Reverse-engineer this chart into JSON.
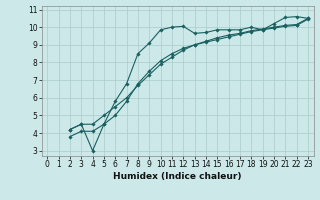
{
  "title": "",
  "xlabel": "Humidex (Indice chaleur)",
  "ylabel": "",
  "bg_color": "#cce8e8",
  "grid_color": "#aacccc",
  "line_color": "#1a6060",
  "xlim": [
    -0.5,
    23.5
  ],
  "ylim": [
    2.7,
    11.2
  ],
  "xticks": [
    0,
    1,
    2,
    3,
    4,
    5,
    6,
    7,
    8,
    9,
    10,
    11,
    12,
    13,
    14,
    15,
    16,
    17,
    18,
    19,
    20,
    21,
    22,
    23
  ],
  "yticks": [
    3,
    4,
    5,
    6,
    7,
    8,
    9,
    10,
    11
  ],
  "line1_x": [
    2,
    3,
    4,
    5,
    6,
    7,
    8,
    9,
    10,
    11,
    12,
    13,
    14,
    15,
    16,
    17,
    18,
    19,
    20,
    21,
    22,
    23
  ],
  "line1_y": [
    4.2,
    4.5,
    3.0,
    4.5,
    5.8,
    6.8,
    8.5,
    9.1,
    9.85,
    10.0,
    10.05,
    9.65,
    9.7,
    9.85,
    9.85,
    9.85,
    10.0,
    9.85,
    10.2,
    10.55,
    10.6,
    10.5
  ],
  "line2_x": [
    2,
    3,
    4,
    5,
    6,
    7,
    8,
    9,
    10,
    11,
    12,
    13,
    14,
    15,
    16,
    17,
    18,
    19,
    20,
    21,
    22,
    23
  ],
  "line2_y": [
    4.2,
    4.5,
    4.5,
    5.0,
    5.5,
    6.0,
    6.7,
    7.3,
    7.9,
    8.3,
    8.7,
    9.0,
    9.2,
    9.4,
    9.55,
    9.65,
    9.8,
    9.9,
    10.0,
    10.1,
    10.15,
    10.5
  ],
  "line3_x": [
    2,
    3,
    4,
    5,
    6,
    7,
    8,
    9,
    10,
    11,
    12,
    13,
    14,
    15,
    16,
    17,
    18,
    19,
    20,
    21,
    22,
    23
  ],
  "line3_y": [
    3.8,
    4.1,
    4.1,
    4.5,
    5.0,
    5.8,
    6.8,
    7.5,
    8.1,
    8.5,
    8.8,
    9.0,
    9.15,
    9.3,
    9.45,
    9.6,
    9.75,
    9.85,
    9.95,
    10.05,
    10.1,
    10.45
  ],
  "tick_fontsize": 5.5,
  "xlabel_fontsize": 6.5
}
